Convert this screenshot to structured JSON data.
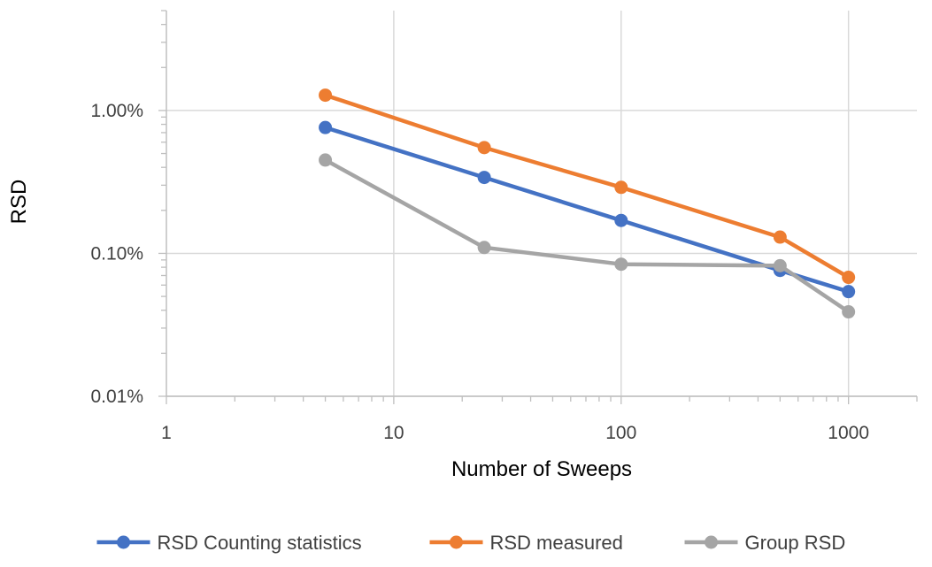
{
  "chart_data": {
    "type": "line",
    "title": "",
    "xlabel": "Number of Sweeps",
    "ylabel": "RSD",
    "x_scale": "log",
    "y_scale": "log",
    "xlim": [
      1,
      2000
    ],
    "ylim": [
      0.0001,
      0.05
    ],
    "grid": true,
    "legend_position": "bottom",
    "x_ticks": [
      {
        "value": 1,
        "label": "1"
      },
      {
        "value": 10,
        "label": "10"
      },
      {
        "value": 100,
        "label": "100"
      },
      {
        "value": 1000,
        "label": "1000"
      }
    ],
    "y_ticks": [
      {
        "value": 0.0001,
        "label": "0.01%"
      },
      {
        "value": 0.001,
        "label": "0.10%"
      },
      {
        "value": 0.01,
        "label": "1.00%"
      }
    ],
    "x": [
      5,
      25,
      100,
      500,
      1000
    ],
    "series": [
      {
        "name": "RSD Counting statistics",
        "color": "#4472C4",
        "values": [
          0.0076,
          0.0034,
          0.0017,
          0.00076,
          0.00054
        ]
      },
      {
        "name": "RSD measured",
        "color": "#ED7D31",
        "values": [
          0.0128,
          0.0055,
          0.0029,
          0.0013,
          0.00068
        ]
      },
      {
        "name": "Group RSD",
        "color": "#A5A5A5",
        "values": [
          0.0045,
          0.0011,
          0.00084,
          0.00082,
          0.00039
        ]
      }
    ]
  }
}
